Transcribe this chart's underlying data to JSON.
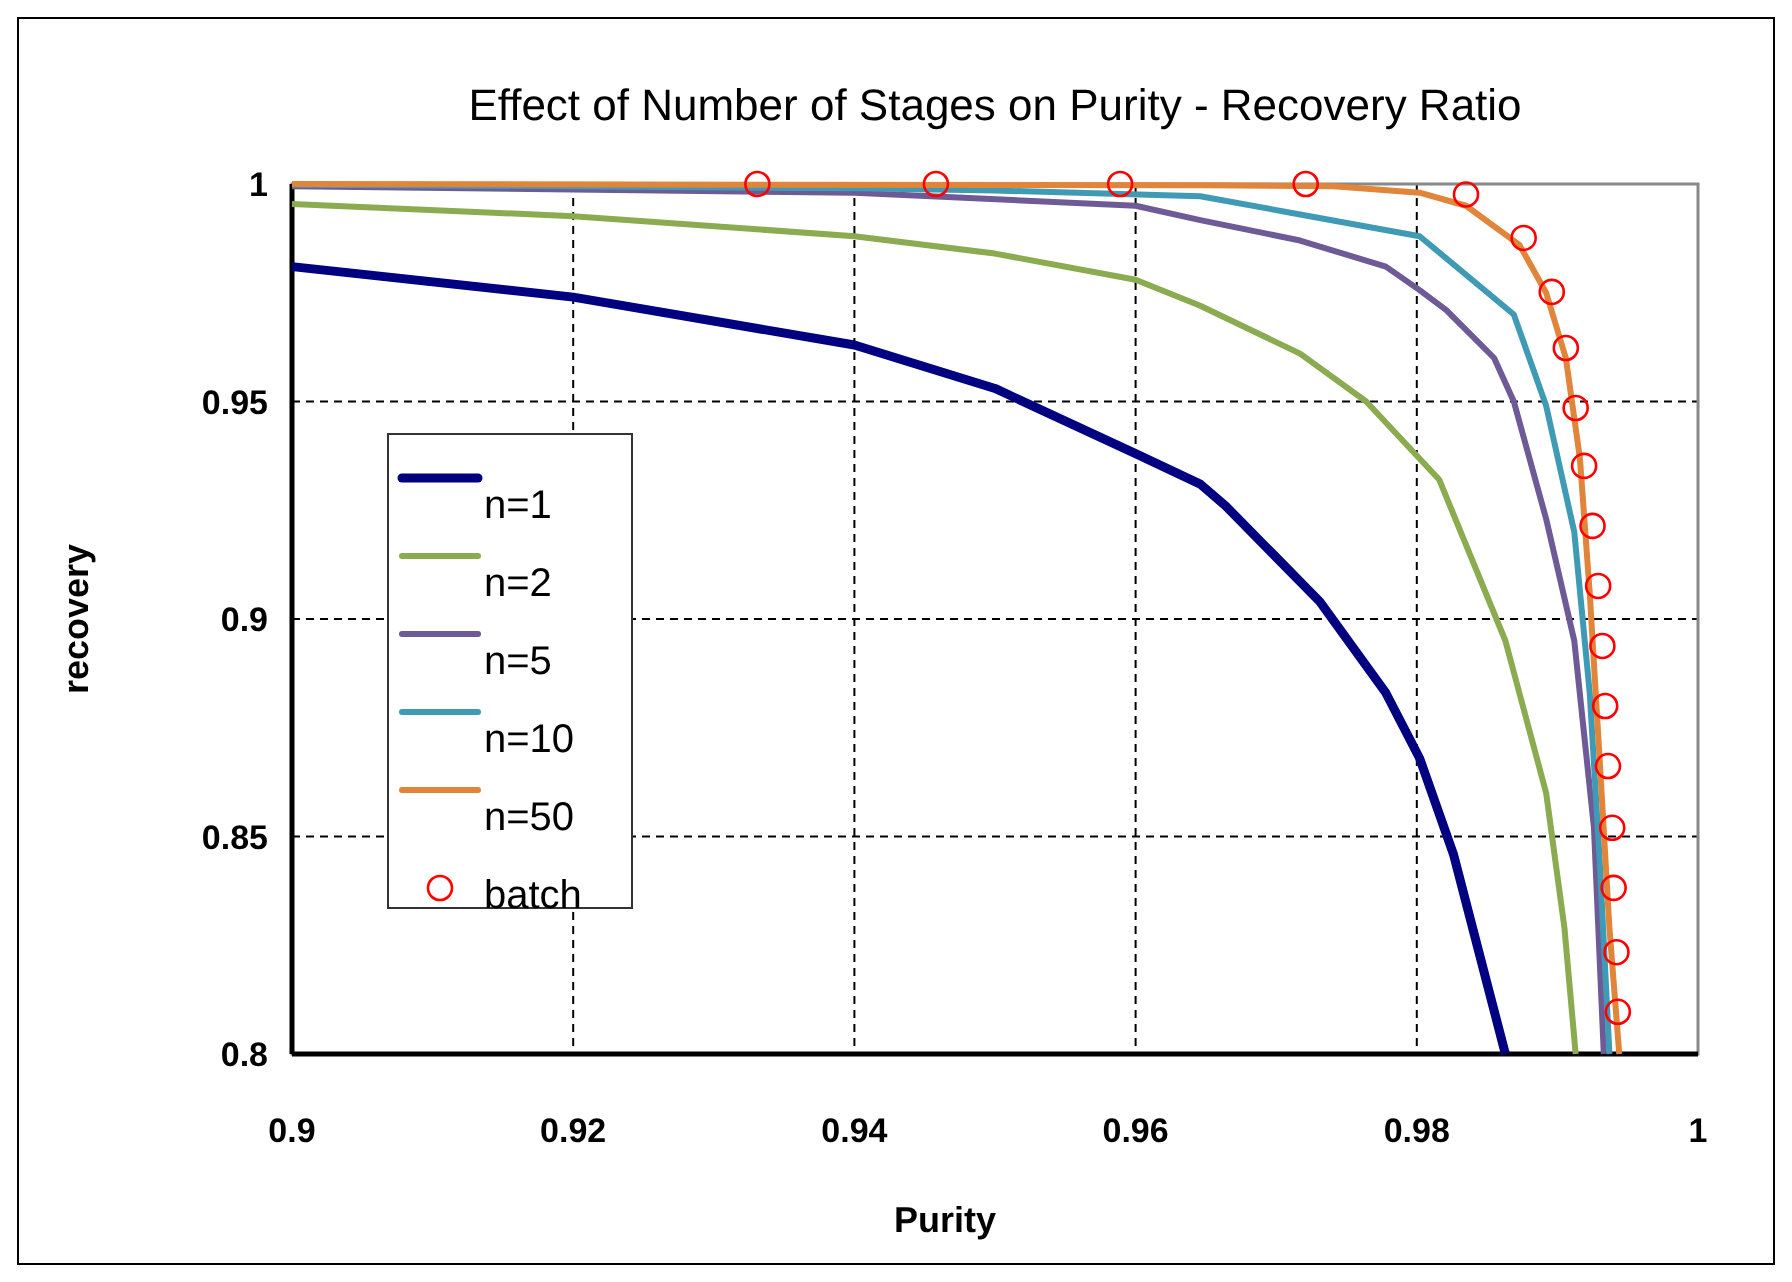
{
  "chart_data": {
    "type": "line",
    "title": "Effect of Number of Stages on Purity - Recovery Ratio",
    "xlabel": "Purity",
    "ylabel": "recovery",
    "xlim": [
      0.9,
      1
    ],
    "xticks": [
      0.9,
      0.92,
      0.94,
      0.96,
      0.98,
      1
    ],
    "ylim": [
      0.8,
      1
    ],
    "yticks": [
      0.8,
      0.85,
      0.9,
      0.95,
      1
    ],
    "grid": true,
    "legend": "left",
    "line_style": "solid",
    "series": [
      {
        "name": "n=1",
        "color": "#000080",
        "x": [
          0.9,
          0.92,
          0.94,
          0.95,
          0.96,
          0.9646,
          0.9664,
          0.9731,
          0.9778,
          0.9802,
          0.9826,
          0.9863
        ],
        "values": [
          0.981,
          0.974,
          0.963,
          0.953,
          0.938,
          0.931,
          0.926,
          0.904,
          0.883,
          0.868,
          0.846,
          0.8
        ]
      },
      {
        "name": "n=2",
        "color": "#8aab4f",
        "x": [
          0.9,
          0.92,
          0.94,
          0.95,
          0.96,
          0.9646,
          0.9717,
          0.9764,
          0.9816,
          0.9863,
          0.9892,
          0.9905,
          0.9913
        ],
        "values": [
          0.9954,
          0.9926,
          0.988,
          0.984,
          0.978,
          0.972,
          0.961,
          0.95,
          0.932,
          0.895,
          0.86,
          0.829,
          0.8
        ]
      },
      {
        "name": "n=5",
        "color": "#6e5a96",
        "x": [
          0.9,
          0.94,
          0.96,
          0.9646,
          0.9717,
          0.9778,
          0.9802,
          0.9821,
          0.9855,
          0.9869,
          0.9892,
          0.9912,
          0.9926,
          0.9933
        ],
        "values": [
          0.9995,
          0.998,
          0.995,
          0.9917,
          0.987,
          0.981,
          0.9756,
          0.971,
          0.96,
          0.95,
          0.923,
          0.895,
          0.852,
          0.8
        ]
      },
      {
        "name": "n=10",
        "color": "#3f9bb5",
        "x": [
          0.9,
          0.92,
          0.94,
          0.95,
          0.9646,
          0.9717,
          0.9802,
          0.9869,
          0.9892,
          0.9912,
          0.9923,
          0.993,
          0.9937
        ],
        "values": [
          0.9998,
          0.9995,
          0.999,
          0.9985,
          0.9972,
          0.993,
          0.988,
          0.97,
          0.949,
          0.92,
          0.883,
          0.845,
          0.8
        ]
      },
      {
        "name": "n=50",
        "color": "#e0853a",
        "x": [
          0.9,
          0.9646,
          0.9741,
          0.9802,
          0.9835,
          0.9873,
          0.9892,
          0.9906,
          0.9916,
          0.9923,
          0.993,
          0.9937,
          0.9944
        ],
        "values": [
          1.0,
          0.9997,
          0.9995,
          0.998,
          0.995,
          0.986,
          0.975,
          0.96,
          0.937,
          0.906,
          0.868,
          0.829,
          0.8
        ]
      },
      {
        "name": "batch",
        "type": "scatter",
        "marker": "circle",
        "color": "#ff0000",
        "x": [
          0.9331,
          0.9458,
          0.9589,
          0.9721,
          0.9835,
          0.9876,
          0.9896,
          0.9906,
          0.9913,
          0.9919,
          0.9925,
          0.9929,
          0.9932,
          0.9934,
          0.9936,
          0.9939,
          0.994,
          0.9942,
          0.9943
        ],
        "values": [
          1.0,
          1.0,
          1.0,
          1.0,
          0.9976,
          0.9876,
          0.9752,
          0.9623,
          0.9485,
          0.9352,
          0.9214,
          0.9076,
          0.8938,
          0.88,
          0.8662,
          0.852,
          0.8382,
          0.8234,
          0.8097
        ]
      }
    ]
  }
}
